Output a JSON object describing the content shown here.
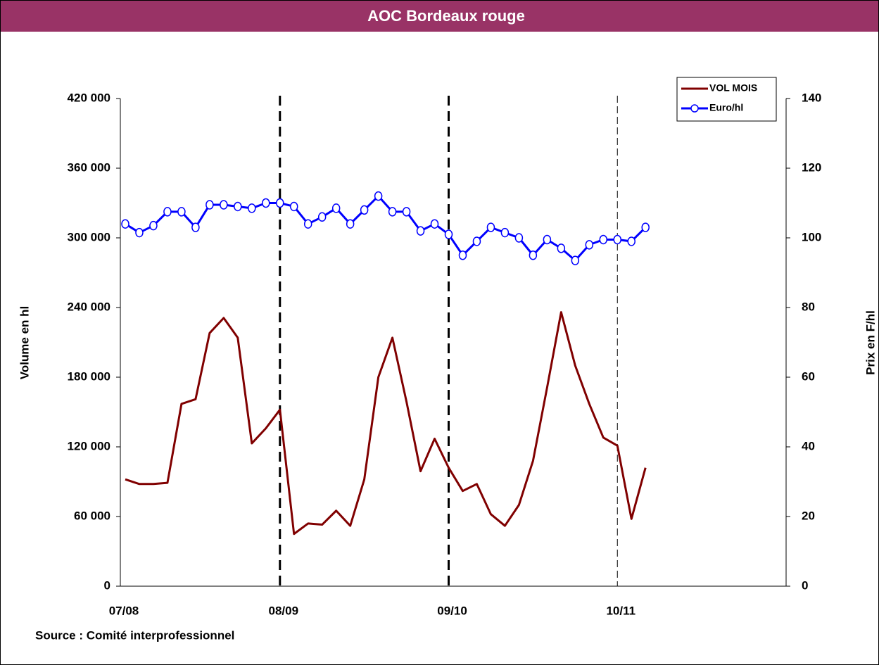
{
  "chart_data": {
    "type": "line",
    "title": "AOC Bordeaux rouge",
    "ylabel": "Volume en hl",
    "y2label": "Prix en F/hl",
    "source": "Source : Comité interprofessionnel",
    "x": [
      0,
      1,
      2,
      3,
      4,
      5,
      6,
      7,
      8,
      9,
      10,
      11,
      12,
      13,
      14,
      15,
      16,
      17,
      18,
      19,
      20,
      21,
      22,
      23,
      24,
      25,
      26,
      27,
      28,
      29,
      30,
      31,
      32,
      33,
      34,
      35,
      36,
      37
    ],
    "xlim": [
      0,
      47
    ],
    "xticks": [
      {
        "value": 0,
        "label": "07/08"
      },
      {
        "value": 11,
        "label": "08/09"
      },
      {
        "value": 23,
        "label": "09/10"
      },
      {
        "value": 35,
        "label": "10/11"
      }
    ],
    "ylim": [
      0,
      420000
    ],
    "yticks": [
      {
        "value": 0,
        "label": "0"
      },
      {
        "value": 60000,
        "label": "60 000"
      },
      {
        "value": 120000,
        "label": "120 000"
      },
      {
        "value": 180000,
        "label": "180 000"
      },
      {
        "value": 240000,
        "label": "240 000"
      },
      {
        "value": 300000,
        "label": "300 000"
      },
      {
        "value": 360000,
        "label": "360 000"
      },
      {
        "value": 420000,
        "label": "420 000"
      }
    ],
    "y2lim": [
      0,
      140
    ],
    "y2ticks": [
      0,
      20,
      40,
      60,
      80,
      100,
      120,
      140
    ],
    "legend": "upper right",
    "series": [
      {
        "name": "VOL MOIS",
        "color": "#800000",
        "values": [
          92000,
          88000,
          88000,
          89000,
          157000,
          161000,
          218000,
          231000,
          214000,
          123000,
          136000,
          152000,
          45000,
          54000,
          53000,
          65000,
          52000,
          92000,
          180000,
          214000,
          159000,
          99000,
          127000,
          102000,
          82000,
          88000,
          62000,
          52000,
          70000,
          108000,
          171000,
          236000,
          190000,
          157000,
          128000,
          121000,
          58000,
          102000
        ]
      },
      {
        "name": "Euro/hl",
        "color": "#0000ff",
        "axis": "y2",
        "marker": "circle",
        "values": [
          104,
          101.5,
          103.5,
          107.5,
          107.5,
          103,
          109.5,
          109.5,
          109,
          108.5,
          110,
          110,
          109,
          104,
          106,
          108.5,
          104,
          108,
          112,
          107.5,
          107.5,
          102,
          104,
          101,
          95,
          99,
          103,
          101.5,
          100,
          95,
          99.5,
          97,
          93.5,
          98,
          99.5,
          99.5,
          99,
          103
        ]
      }
    ]
  }
}
